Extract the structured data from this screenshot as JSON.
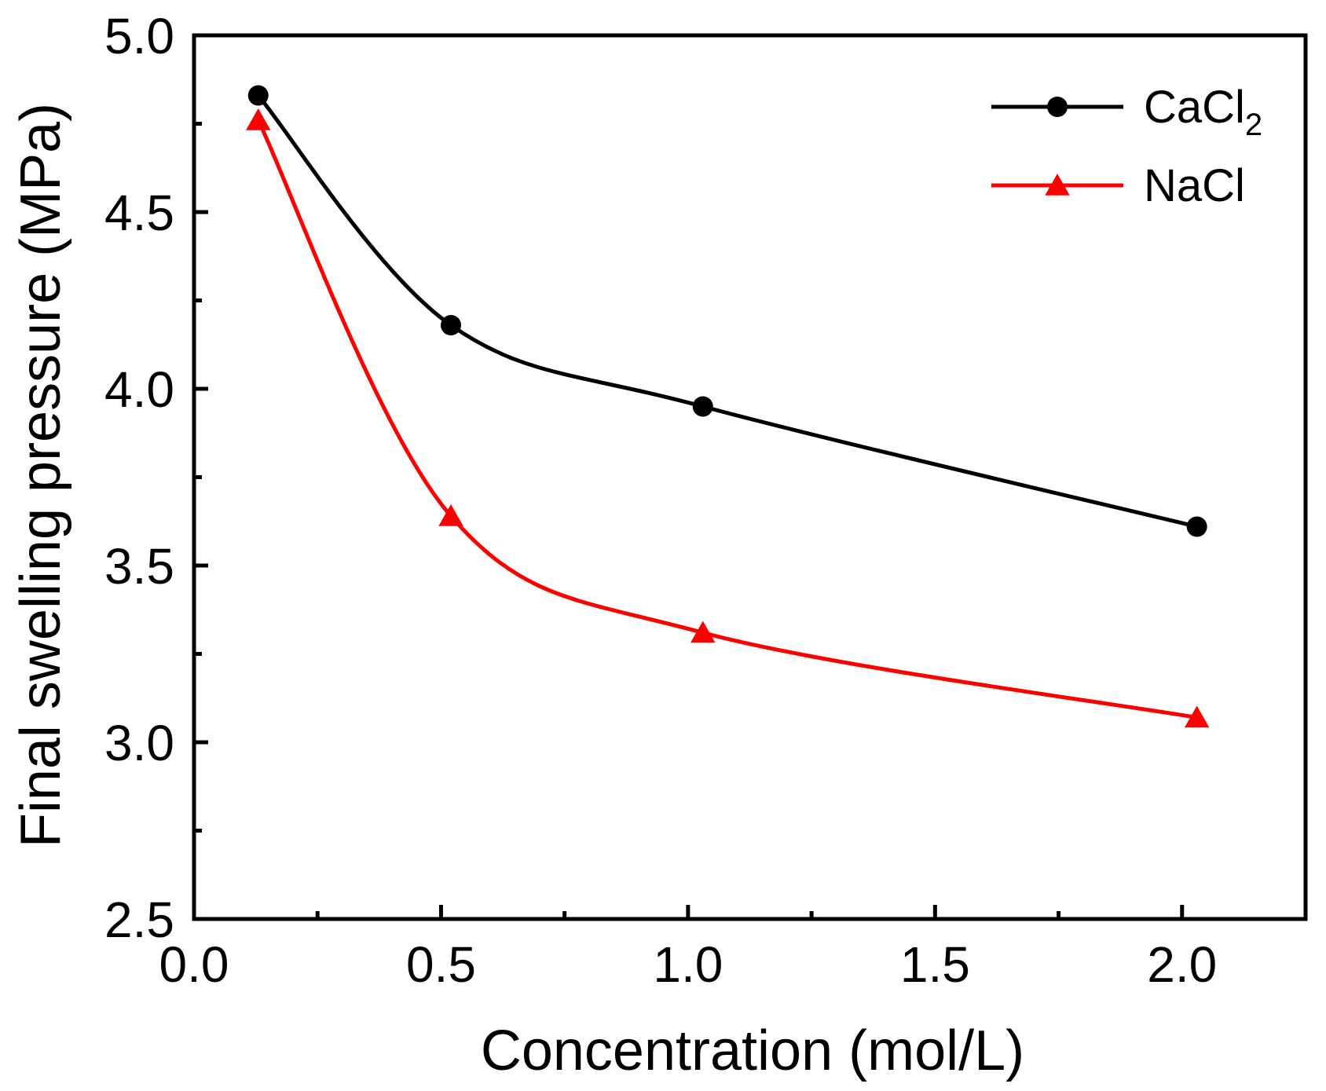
{
  "chart_data": {
    "type": "line",
    "xlabel": "Concentration (mol/L)",
    "ylabel": "Final swelling pressure (MPa)",
    "xlim": [
      0.0,
      2.25
    ],
    "ylim": [
      2.5,
      5.0
    ],
    "x_ticks": [
      "0.0",
      "0.5",
      "1.0",
      "1.5",
      "2.0"
    ],
    "y_ticks": [
      "2.5",
      "3.0",
      "3.5",
      "4.0",
      "4.5",
      "5.0"
    ],
    "grid": false,
    "legend_position": "top-right",
    "series": [
      {
        "name": "CaCl2",
        "legend_main": "CaCl",
        "legend_sub": "2",
        "marker": "circle",
        "color": "#000000",
        "x": [
          0.13,
          0.52,
          1.03,
          2.03
        ],
        "y": [
          4.83,
          4.18,
          3.95,
          3.61
        ]
      },
      {
        "name": "NaCl",
        "legend_main": "NaCl",
        "legend_sub": "",
        "marker": "triangle",
        "color": "#ff0000",
        "x": [
          0.13,
          0.52,
          1.03,
          2.03
        ],
        "y": [
          4.76,
          3.64,
          3.31,
          3.07
        ]
      }
    ]
  }
}
